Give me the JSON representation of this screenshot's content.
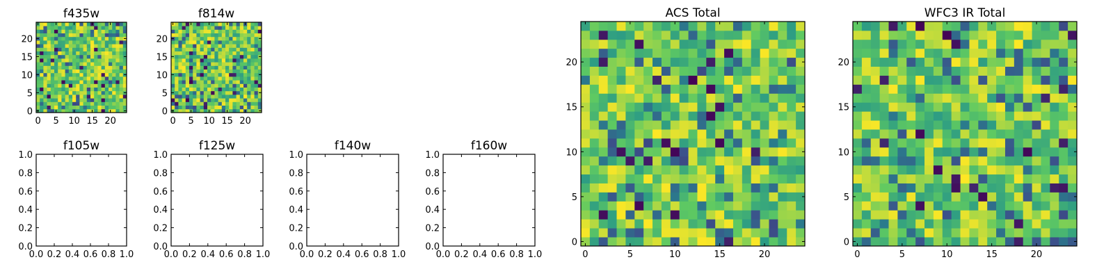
{
  "figure": {
    "colormap": "viridis",
    "cmap_colors": [
      "#440154",
      "#3b528b",
      "#21918c",
      "#5ec962",
      "#fde725"
    ]
  },
  "chart_data": [
    {
      "id": "f435w",
      "type": "heatmap",
      "title": "f435w",
      "xlim": [
        -0.5,
        24.5
      ],
      "ylim": [
        -0.5,
        24.5
      ],
      "xticks": [
        0,
        5,
        10,
        15,
        20
      ],
      "yticks": [
        0,
        5,
        10,
        15,
        20
      ],
      "grid_size": [
        25,
        25
      ],
      "seed": 11,
      "value_range": [
        0,
        1
      ]
    },
    {
      "id": "f814w",
      "type": "heatmap",
      "title": "f814w",
      "xlim": [
        -0.5,
        24.5
      ],
      "ylim": [
        -0.5,
        24.5
      ],
      "xticks": [
        0,
        5,
        10,
        15,
        20
      ],
      "yticks": [
        0,
        5,
        10,
        15,
        20
      ],
      "grid_size": [
        25,
        25
      ],
      "seed": 23,
      "value_range": [
        0,
        1
      ]
    },
    {
      "id": "f105w",
      "type": "empty",
      "title": "f105w",
      "xlim": [
        0,
        1
      ],
      "ylim": [
        0,
        1
      ],
      "xticks": [
        "0.0",
        "0.2",
        "0.4",
        "0.6",
        "0.8",
        "1.0"
      ],
      "yticks": [
        "0.0",
        "0.2",
        "0.4",
        "0.6",
        "0.8",
        "1.0"
      ]
    },
    {
      "id": "f125w",
      "type": "empty",
      "title": "f125w",
      "xlim": [
        0,
        1
      ],
      "ylim": [
        0,
        1
      ],
      "xticks": [
        "0.0",
        "0.2",
        "0.4",
        "0.6",
        "0.8",
        "1.0"
      ],
      "yticks": [
        "0.0",
        "0.2",
        "0.4",
        "0.6",
        "0.8",
        "1.0"
      ]
    },
    {
      "id": "f140w",
      "type": "empty",
      "title": "f140w",
      "xlim": [
        0,
        1
      ],
      "ylim": [
        0,
        1
      ],
      "xticks": [
        "0.0",
        "0.2",
        "0.4",
        "0.6",
        "0.8",
        "1.0"
      ],
      "yticks": [
        "0.0",
        "0.2",
        "0.4",
        "0.6",
        "0.8",
        "1.0"
      ]
    },
    {
      "id": "f160w",
      "type": "empty",
      "title": "f160w",
      "xlim": [
        0,
        1
      ],
      "ylim": [
        0,
        1
      ],
      "xticks": [
        "0.0",
        "0.2",
        "0.4",
        "0.6",
        "0.8",
        "1.0"
      ],
      "yticks": [
        "0.0",
        "0.2",
        "0.4",
        "0.6",
        "0.8",
        "1.0"
      ]
    },
    {
      "id": "acs-total",
      "type": "heatmap",
      "title": "ACS Total",
      "xlim": [
        -0.5,
        24.5
      ],
      "ylim": [
        -0.5,
        24.5
      ],
      "xticks": [
        0,
        5,
        10,
        15,
        20
      ],
      "yticks": [
        0,
        5,
        10,
        15,
        20
      ],
      "grid_size": [
        25,
        25
      ],
      "seed": 37,
      "value_range": [
        0,
        1
      ]
    },
    {
      "id": "wfc3-ir-total",
      "type": "heatmap",
      "title": "WFC3 IR Total",
      "xlim": [
        -0.5,
        24.5
      ],
      "ylim": [
        -0.5,
        24.5
      ],
      "xticks": [
        0,
        5,
        10,
        15,
        20
      ],
      "yticks": [
        0,
        5,
        10,
        15,
        20
      ],
      "grid_size": [
        25,
        25
      ],
      "seed": 53,
      "value_range": [
        0,
        1
      ]
    }
  ]
}
